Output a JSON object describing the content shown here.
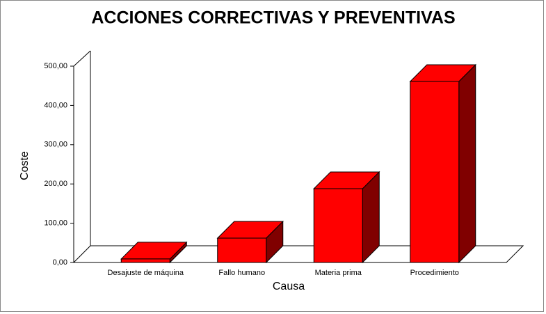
{
  "chart_data": {
    "type": "bar3d",
    "title": "ACCIONES CORRECTIVAS Y PREVENTIVAS",
    "x_label": "Causa",
    "y_label": "Coste",
    "categories": [
      "Desajuste de máquina",
      "Fallo humano",
      "Materia prima",
      "Procedimiento"
    ],
    "values": [
      9,
      62,
      188,
      461
    ],
    "color": "#ff0000",
    "ylim": [
      0,
      500
    ],
    "yticks": [
      {
        "value": 0,
        "label": "0,00"
      },
      {
        "value": 100,
        "label": "100,00"
      },
      {
        "value": 200,
        "label": "200,00"
      },
      {
        "value": 300,
        "label": "300,00"
      },
      {
        "value": 400,
        "label": "400,00"
      },
      {
        "value": 500,
        "label": "500,00"
      }
    ]
  }
}
